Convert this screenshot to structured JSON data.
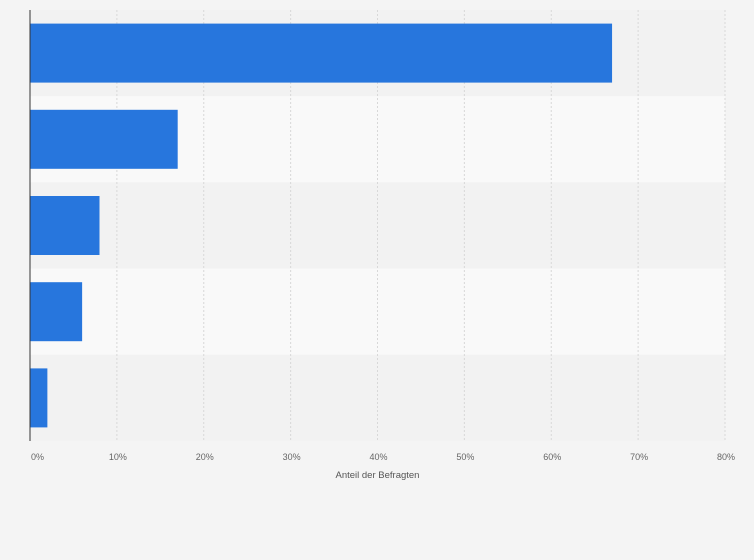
{
  "colors": {
    "bar": "#2776dd",
    "band_dark": "#f2f2f2",
    "band_light": "#f9f9f9",
    "grid": "#d8d8d8",
    "axis": "#333333",
    "background": "#f4f4f4"
  },
  "chart_data": {
    "type": "bar",
    "orientation": "horizontal",
    "categories": [
      "",
      "",
      "",
      "",
      ""
    ],
    "values": [
      67,
      17,
      8,
      6,
      2
    ],
    "value_unit": "%",
    "xlim": [
      0,
      80
    ],
    "xticks": [
      0,
      10,
      20,
      30,
      40,
      50,
      60,
      70,
      80
    ],
    "xtick_labels": [
      "0%",
      "10%",
      "20%",
      "30%",
      "40%",
      "50%",
      "60%",
      "70%",
      "80%"
    ],
    "xlabel": "Anteil der Befragten",
    "ylabel": "",
    "title": "",
    "grid": true,
    "legend": "none"
  }
}
